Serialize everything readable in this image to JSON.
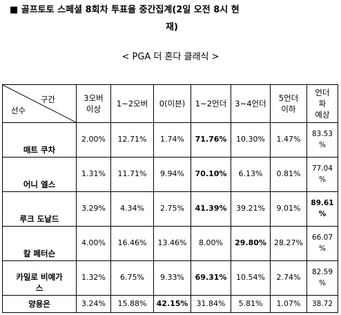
{
  "title": {
    "line1": "■ 골프토토 스페셜 8회차 투표율 중간집계(2일 오전 8시 현",
    "line2": "재)"
  },
  "subtitle": "< PGA 더 혼다 클래식 >",
  "table": {
    "corner_top": "구간",
    "corner_bottom": "선수",
    "headers": [
      "3오버\n이상",
      "1~2오버",
      "0(이븐)",
      "1~2언더",
      "3~4언더",
      "5언더\n이하",
      "언더\n파\n예상"
    ],
    "rows": [
      {
        "name": "매트 쿠차",
        "values": [
          "2.00%",
          "12.71%",
          "1.74%",
          "71.76%",
          "10.30%",
          "1.47%",
          "83.53\n%"
        ],
        "bold": [
          3
        ]
      },
      {
        "name": "어니 엘스",
        "values": [
          "1.31%",
          "11.71%",
          "9.94%",
          "70.10%",
          "6.13%",
          "0.81%",
          "77.04\n%"
        ],
        "bold": [
          3
        ]
      },
      {
        "name": "루크 도날드",
        "values": [
          "3.29%",
          "4.34%",
          "2.75%",
          "41.39%",
          "39.21%",
          "9.01%",
          "89.61\n%"
        ],
        "bold": [
          3,
          6
        ]
      },
      {
        "name": "칼 페터슨",
        "values": [
          "4.00%",
          "16.46%",
          "13.46%",
          "8.00%",
          "29.80%",
          "28.27%",
          "66.07\n%"
        ],
        "bold": [
          4
        ]
      },
      {
        "name": "카밀로 비예가\n스",
        "values": [
          "1.32%",
          "6.75%",
          "9.33%",
          "69.31%",
          "10.54%",
          "2.74%",
          "82.59\n%"
        ],
        "bold": [
          3
        ]
      },
      {
        "name": "양용은",
        "values": [
          "3.24%",
          "15.88%",
          "42.15%",
          "31.84%",
          "5.81%",
          "1.07%",
          "38.72"
        ],
        "bold": [
          2
        ]
      }
    ]
  }
}
